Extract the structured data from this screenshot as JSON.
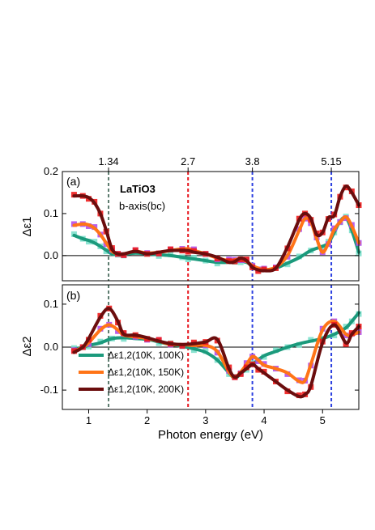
{
  "chart_data": [
    {
      "type": "line",
      "panel_label": "(a)",
      "title": "LaTiO3",
      "subtitle": "b-axis(bc)",
      "ylabel": "Δε1",
      "xlim": [
        0.55,
        5.62
      ],
      "ylim": [
        -0.06,
        0.2
      ],
      "yticks": [
        0.0,
        0.1,
        0.2
      ],
      "ytick_labels": [
        "0.0",
        "0.1",
        "0.2"
      ],
      "top_ticks": [
        1.34,
        2.7,
        3.8,
        5.15
      ],
      "top_tick_labels": [
        "1.34",
        "2.7",
        "3.8",
        "5.15"
      ],
      "vlines": [
        {
          "x": 1.34,
          "color": "#5b7b6e"
        },
        {
          "x": 2.7,
          "color": "#e8161d"
        },
        {
          "x": 3.8,
          "color": "#2b3fe0"
        },
        {
          "x": 5.15,
          "color": "#2b3fe0"
        }
      ],
      "zero_line": true,
      "series": [
        {
          "name": "Δε1,2(10K, 100K)",
          "color": "#1b9a7c",
          "marker_color": "#7ee0cc",
          "x": [
            0.75,
            0.9,
            1.0,
            1.1,
            1.2,
            1.3,
            1.4,
            1.5,
            1.6,
            1.8,
            2.0,
            2.2,
            2.4,
            2.6,
            2.7,
            2.8,
            3.0,
            3.2,
            3.4,
            3.5,
            3.6,
            3.7,
            3.8,
            3.9,
            4.0,
            4.2,
            4.4,
            4.6,
            4.8,
            5.0,
            5.1,
            5.2,
            5.3,
            5.4,
            5.5,
            5.62
          ],
          "y": [
            0.048,
            0.04,
            0.036,
            0.03,
            0.022,
            0.013,
            0.004,
            0.002,
            0.003,
            0.006,
            0.004,
            0.002,
            0.0,
            -0.004,
            -0.006,
            -0.008,
            -0.012,
            -0.016,
            -0.016,
            -0.015,
            -0.013,
            -0.016,
            -0.024,
            -0.031,
            -0.035,
            -0.03,
            -0.018,
            -0.005,
            0.012,
            0.022,
            0.03,
            0.055,
            0.082,
            0.09,
            0.06,
            0.008
          ]
        },
        {
          "name": "Δε1,2(10K, 150K)",
          "color": "#ff7417",
          "marker_color": "#b24ee8",
          "x": [
            0.75,
            0.9,
            1.0,
            1.1,
            1.2,
            1.3,
            1.4,
            1.5,
            1.6,
            1.8,
            2.0,
            2.2,
            2.4,
            2.6,
            2.7,
            2.8,
            3.0,
            3.2,
            3.4,
            3.5,
            3.6,
            3.7,
            3.8,
            3.9,
            4.0,
            4.2,
            4.4,
            4.6,
            4.7,
            4.8,
            4.9,
            5.0,
            5.1,
            5.2,
            5.3,
            5.4,
            5.5,
            5.62
          ],
          "y": [
            0.072,
            0.075,
            0.073,
            0.065,
            0.05,
            0.03,
            0.01,
            0.004,
            0.004,
            0.01,
            0.006,
            0.008,
            0.012,
            0.016,
            0.016,
            0.012,
            0.004,
            -0.006,
            -0.012,
            -0.01,
            -0.008,
            -0.014,
            -0.024,
            -0.03,
            -0.034,
            -0.028,
            0.0,
            0.06,
            0.088,
            0.08,
            0.04,
            0.008,
            0.03,
            0.062,
            0.08,
            0.092,
            0.07,
            0.03
          ]
        },
        {
          "name": "Δε1,2(10K, 200K)",
          "color": "#6b0d0d",
          "marker_color": "#ee1b1b",
          "x": [
            0.75,
            0.9,
            1.0,
            1.1,
            1.2,
            1.3,
            1.4,
            1.5,
            1.6,
            1.8,
            2.0,
            2.2,
            2.4,
            2.6,
            2.7,
            2.8,
            3.0,
            3.2,
            3.4,
            3.5,
            3.6,
            3.7,
            3.8,
            3.9,
            4.0,
            4.2,
            4.4,
            4.6,
            4.7,
            4.8,
            4.9,
            5.0,
            5.1,
            5.2,
            5.3,
            5.4,
            5.5,
            5.62
          ],
          "y": [
            0.142,
            0.142,
            0.138,
            0.125,
            0.1,
            0.06,
            0.015,
            0.004,
            0.004,
            0.01,
            0.004,
            0.008,
            0.012,
            0.012,
            0.012,
            0.008,
            0.004,
            -0.004,
            -0.016,
            -0.014,
            -0.006,
            -0.012,
            -0.028,
            -0.034,
            -0.036,
            -0.03,
            0.02,
            0.085,
            0.1,
            0.088,
            0.05,
            0.055,
            0.09,
            0.095,
            0.14,
            0.165,
            0.15,
            0.12
          ]
        }
      ]
    },
    {
      "type": "line",
      "panel_label": "(b)",
      "ylabel": "Δε2",
      "xlabel": "Photon energy (eV)",
      "xlim": [
        0.55,
        5.62
      ],
      "ylim": [
        -0.145,
        0.145
      ],
      "yticks": [
        -0.1,
        0.0,
        0.1
      ],
      "ytick_labels": [
        "-0.1",
        "0.0",
        "0.1"
      ],
      "xticks": [
        1,
        2,
        3,
        4,
        5
      ],
      "xtick_labels": [
        "1",
        "2",
        "3",
        "4",
        "5"
      ],
      "zero_line": true,
      "legend_location": "lower-left",
      "series": [
        {
          "name": "Δε1,2(10K, 100K)",
          "color": "#1b9a7c",
          "marker_color": "#7ee0cc",
          "x": [
            0.75,
            0.9,
            1.0,
            1.2,
            1.4,
            1.6,
            1.8,
            2.0,
            2.2,
            2.4,
            2.6,
            2.8,
            3.0,
            3.2,
            3.4,
            3.5,
            3.6,
            3.7,
            3.8,
            3.9,
            4.0,
            4.2,
            4.4,
            4.6,
            4.8,
            5.0,
            5.2,
            5.4,
            5.5,
            5.62
          ],
          "y": [
            -0.005,
            0.0,
            0.004,
            0.01,
            0.02,
            0.022,
            0.02,
            0.018,
            0.012,
            0.006,
            0.002,
            -0.004,
            -0.012,
            -0.03,
            -0.06,
            -0.072,
            -0.062,
            -0.05,
            -0.04,
            -0.03,
            -0.02,
            -0.01,
            0.0,
            0.008,
            0.014,
            0.02,
            0.03,
            0.045,
            0.06,
            0.08
          ]
        },
        {
          "name": "Δε1,2(10K, 150K)",
          "color": "#ff7417",
          "marker_color": "#b24ee8",
          "x": [
            0.75,
            0.9,
            1.0,
            1.2,
            1.35,
            1.5,
            1.6,
            1.8,
            2.0,
            2.2,
            2.4,
            2.6,
            2.8,
            3.0,
            3.2,
            3.4,
            3.5,
            3.6,
            3.7,
            3.8,
            3.9,
            4.0,
            4.2,
            4.4,
            4.6,
            4.7,
            4.8,
            5.0,
            5.2,
            5.4,
            5.5,
            5.62
          ],
          "y": [
            -0.01,
            0.0,
            0.01,
            0.04,
            0.052,
            0.04,
            0.028,
            0.024,
            0.02,
            0.014,
            0.006,
            0.006,
            0.004,
            0.004,
            -0.01,
            -0.058,
            -0.07,
            -0.058,
            -0.04,
            -0.022,
            -0.03,
            -0.042,
            -0.05,
            -0.06,
            -0.08,
            -0.078,
            -0.04,
            0.04,
            0.06,
            0.03,
            0.028,
            0.035
          ]
        },
        {
          "name": "Δε1,2(10K, 200K)",
          "color": "#6b0d0d",
          "marker_color": "#ee1b1b",
          "x": [
            0.75,
            0.9,
            1.0,
            1.2,
            1.35,
            1.5,
            1.6,
            1.8,
            2.0,
            2.2,
            2.4,
            2.6,
            2.8,
            3.0,
            3.2,
            3.4,
            3.5,
            3.6,
            3.7,
            3.8,
            3.9,
            4.0,
            4.2,
            4.4,
            4.6,
            4.7,
            4.8,
            5.0,
            5.2,
            5.4,
            5.5,
            5.62
          ],
          "y": [
            -0.012,
            0.0,
            0.02,
            0.07,
            0.09,
            0.06,
            0.03,
            0.028,
            0.022,
            0.014,
            0.008,
            0.006,
            0.008,
            0.012,
            0.018,
            -0.05,
            -0.07,
            -0.06,
            -0.05,
            -0.04,
            -0.05,
            -0.06,
            -0.08,
            -0.1,
            -0.115,
            -0.11,
            -0.09,
            0.01,
            0.052,
            0.01,
            0.03,
            0.048
          ]
        }
      ]
    }
  ]
}
